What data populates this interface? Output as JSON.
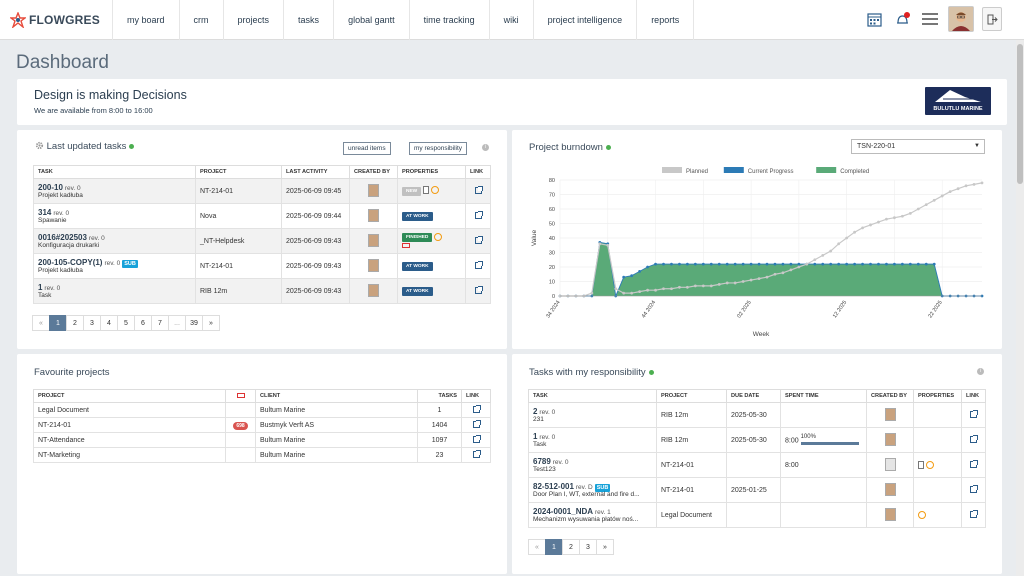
{
  "nav": {
    "logo": "FLOWGRES",
    "items": [
      "my board",
      "crm",
      "projects",
      "tasks",
      "global gantt",
      "time tracking",
      "wiki",
      "project intelligence",
      "reports"
    ]
  },
  "page_title": "Dashboard",
  "banner": {
    "title": "Design is making Decisions",
    "subtitle": "We are available from 8:00 to 16:00",
    "brand": "BULUTLU MARINE"
  },
  "last_updated": {
    "title": "Last updated tasks",
    "btn_unread": "unread items",
    "btn_resp": "my responsibility",
    "cols": [
      "TASK",
      "PROJECT",
      "LAST ACTIVITY",
      "CREATED BY",
      "PROPERTIES",
      "LINK"
    ],
    "rows": [
      {
        "name": "200-10",
        "rev": "rev. 0",
        "sub": "Projekt kadłuba",
        "tag": "",
        "project": "NT-214-01",
        "activity": "2025-06-09 09:45",
        "status": "NEW"
      },
      {
        "name": "314",
        "rev": "rev. 0",
        "sub": "Spawanie",
        "tag": "",
        "project": "Nova",
        "activity": "2025-06-09 09:44",
        "status": "AT WORK"
      },
      {
        "name": "0016#202503",
        "rev": "rev. 0",
        "sub": "Konfiguracja drukarki",
        "tag": "",
        "project": "_NT-Helpdesk",
        "activity": "2025-06-09 09:43",
        "status": "FINISHED"
      },
      {
        "name": "200-105-COPY(1)",
        "rev": "rev. 0",
        "sub": "Projekt kadłuba",
        "tag": "SUB",
        "project": "NT-214-01",
        "activity": "2025-06-09 09:43",
        "status": "AT WORK"
      },
      {
        "name": "1",
        "rev": "rev. 0",
        "sub": "Task",
        "tag": "",
        "project": "RIB 12m",
        "activity": "2025-06-09 09:43",
        "status": "AT WORK"
      }
    ],
    "pages": [
      "«",
      "1",
      "2",
      "3",
      "4",
      "5",
      "6",
      "7",
      "...",
      "39",
      "»"
    ]
  },
  "burndown": {
    "title": "Project burndown",
    "select": "TSN-220-01"
  },
  "chart_data": {
    "type": "area",
    "xlabel": "Week",
    "ylabel": "Value",
    "ylim": [
      0,
      80
    ],
    "yticks": [
      0,
      10,
      20,
      30,
      40,
      50,
      60,
      70,
      80
    ],
    "xticks": [
      "34 2024",
      "44 2024",
      "02 2025",
      "12 2025",
      "22 2025"
    ],
    "legend": [
      "Planned",
      "Current Progress",
      "Completed"
    ],
    "legend_position": "top",
    "x": [
      0,
      1,
      2,
      3,
      4,
      5,
      6,
      7,
      8,
      9,
      10,
      11,
      12,
      13,
      14,
      15,
      16,
      17,
      18,
      19,
      20,
      21,
      22,
      23,
      24,
      25,
      26,
      27,
      28,
      29,
      30,
      31,
      32,
      33,
      34,
      35,
      36,
      37,
      38,
      39,
      40,
      41,
      42,
      43,
      44,
      45,
      46,
      47,
      48,
      49,
      50,
      51,
      52,
      53
    ],
    "series": [
      {
        "name": "Planned",
        "values": [
          0,
          0,
          0,
          0,
          2,
          36,
          35,
          5,
          2,
          2,
          3,
          4,
          4,
          5,
          5,
          6,
          6,
          7,
          7,
          7,
          8,
          9,
          9,
          10,
          11,
          12,
          13,
          15,
          16,
          18,
          20,
          22,
          25,
          28,
          31,
          36,
          40,
          44,
          47,
          49,
          51,
          53,
          54,
          55,
          57,
          60,
          63,
          66,
          69,
          72,
          74,
          76,
          77,
          78
        ]
      },
      {
        "name": "Current Progress",
        "values": [
          0,
          0,
          0,
          0,
          0,
          37,
          36,
          0,
          13,
          14,
          17,
          20,
          22,
          22,
          22,
          22,
          22,
          22,
          22,
          22,
          22,
          22,
          22,
          22,
          22,
          22,
          22,
          22,
          22,
          22,
          22,
          22,
          22,
          22,
          22,
          22,
          22,
          22,
          22,
          22,
          22,
          22,
          22,
          22,
          22,
          22,
          22,
          22,
          0,
          0,
          0,
          0,
          0,
          0
        ]
      },
      {
        "name": "Completed",
        "values": [
          0,
          0,
          0,
          0,
          0,
          37,
          36,
          0,
          13,
          14,
          17,
          20,
          22,
          22,
          22,
          22,
          22,
          22,
          22,
          22,
          22,
          22,
          22,
          22,
          22,
          22,
          22,
          22,
          22,
          22,
          22,
          22,
          22,
          22,
          22,
          22,
          22,
          22,
          22,
          22,
          22,
          22,
          22,
          22,
          22,
          22,
          22,
          22,
          0,
          0,
          0,
          0,
          0,
          0
        ]
      }
    ]
  },
  "favourites": {
    "title": "Favourite projects",
    "cols": [
      "PROJECT",
      "",
      "CLIENT",
      "TASKS",
      "LINK"
    ],
    "rows": [
      {
        "project": "Legal Document",
        "badge": "",
        "client": "Bultum Marine",
        "tasks": "1"
      },
      {
        "project": "NT-214-01",
        "badge": "698",
        "client": "Bustmyk Verft AS",
        "tasks": "1404"
      },
      {
        "project": "NT-Attendance",
        "badge": "",
        "client": "Bultum Marine",
        "tasks": "1097"
      },
      {
        "project": "NT-Marketing",
        "badge": "",
        "client": "Bultum Marine",
        "tasks": "23"
      }
    ]
  },
  "responsibility": {
    "title": "Tasks with my responsibility",
    "cols": [
      "TASK",
      "PROJECT",
      "DUE DATE",
      "SPENT TIME",
      "CREATED BY",
      "PROPERTIES",
      "LINK"
    ],
    "rows": [
      {
        "name": "2",
        "rev": "rev. 0",
        "sub": "231",
        "tag": "",
        "project": "RIB 12m",
        "due": "2025-05-30",
        "spent": "",
        "pct": "",
        "props": ""
      },
      {
        "name": "1",
        "rev": "rev. 0",
        "sub": "Task",
        "tag": "",
        "project": "RIB 12m",
        "due": "2025-05-30",
        "spent": "8:00",
        "pct": "100%",
        "props": ""
      },
      {
        "name": "6789",
        "rev": "rev. 0",
        "sub": "Test123",
        "tag": "",
        "project": "NT-214-01",
        "due": "",
        "spent": "8:00",
        "pct": "",
        "props": "file-ring"
      },
      {
        "name": "82-512-001",
        "rev": "rev. D",
        "sub": "Door Plan I, WT, external and fire d...",
        "tag": "SUB",
        "project": "NT-214-01",
        "due": "2025-01-25",
        "spent": "",
        "pct": "",
        "props": ""
      },
      {
        "name": "2024-0001_NDA",
        "rev": "rev. 1",
        "sub": "Mechanizm wysuwania płatów noś...",
        "tag": "",
        "project": "Legal Document",
        "due": "",
        "spent": "",
        "pct": "",
        "props": "ring"
      }
    ],
    "pages": [
      "«",
      "1",
      "2",
      "3",
      "»"
    ]
  }
}
